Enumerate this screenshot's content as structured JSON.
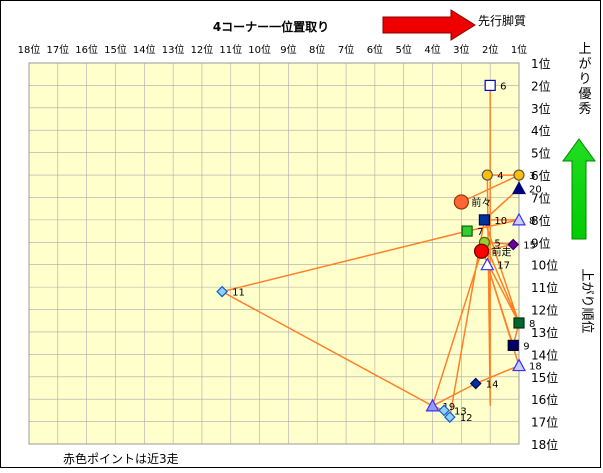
{
  "chart_data": {
    "type": "scatter",
    "title": "4コーナー一位置取り",
    "x_axis": {
      "label_direction": "先行脚質",
      "ticks": [
        "18位",
        "17位",
        "16位",
        "15位",
        "14位",
        "13位",
        "12位",
        "11位",
        "10位",
        "9位",
        "8位",
        "7位",
        "6位",
        "5位",
        "4位",
        "3位",
        "2位",
        "1位"
      ],
      "range": [
        18,
        1
      ],
      "reversed": true
    },
    "y_axis": {
      "label_top": "上がり優秀",
      "label_right": "上がり順位",
      "ticks": [
        "1位",
        "2位",
        "3位",
        "4位",
        "5位",
        "6位",
        "7位",
        "8位",
        "9位",
        "10位",
        "11位",
        "12位",
        "13位",
        "14位",
        "15位",
        "16位",
        "17位",
        "18位"
      ],
      "range": [
        1,
        18
      ]
    },
    "grid": true,
    "plot_background": "#ffffcc",
    "line_color": "#ff7f27",
    "note": "赤色ポイントは近3走",
    "points": [
      {
        "label": "6",
        "x": 2.0,
        "y": 2.0,
        "shape": "square",
        "fill": "#ffffff",
        "stroke": "#0000cc"
      },
      {
        "label": "4",
        "x": 2.1,
        "y": 6.0,
        "shape": "circle",
        "fill": "#ffc000",
        "stroke": "#555555"
      },
      {
        "label": "3",
        "x": 1.0,
        "y": 6.0,
        "shape": "circle",
        "fill": "#ffc000",
        "stroke": "#555555"
      },
      {
        "label": "20",
        "x": 1.0,
        "y": 6.6,
        "shape": "triangle",
        "fill": "#00007f",
        "stroke": "#00007f"
      },
      {
        "label": "前々",
        "x": 3.0,
        "y": 7.2,
        "shape": "circle",
        "fill": "#ff6633",
        "stroke": "#993300",
        "big": true
      },
      {
        "label": "10",
        "x": 2.2,
        "y": 8.0,
        "shape": "square",
        "fill": "#003399",
        "stroke": "#000066"
      },
      {
        "label": "8",
        "x": 1.0,
        "y": 8.0,
        "shape": "triangle",
        "fill": "#ccccff",
        "stroke": "#3333ff"
      },
      {
        "label": "7",
        "x": 2.8,
        "y": 8.5,
        "shape": "square",
        "fill": "#33cc33",
        "stroke": "#006600"
      },
      {
        "label": "5",
        "x": 2.2,
        "y": 9.0,
        "shape": "circle",
        "fill": "#99cc33",
        "stroke": "#556600"
      },
      {
        "label": "15",
        "x": 1.2,
        "y": 9.1,
        "shape": "diamond",
        "fill": "#660099",
        "stroke": "#330066"
      },
      {
        "label": "前走",
        "x": 2.3,
        "y": 9.4,
        "shape": "circle",
        "fill": "#ff0000",
        "stroke": "#660000",
        "big": true
      },
      {
        "label": "17",
        "x": 2.1,
        "y": 10.0,
        "shape": "triangle",
        "fill": "#ffffff",
        "stroke": "#3333ff"
      },
      {
        "label": "11",
        "x": 11.3,
        "y": 11.2,
        "shape": "diamond",
        "fill": "#99ccff",
        "stroke": "#0066cc"
      },
      {
        "label": "8",
        "x": 1.0,
        "y": 12.6,
        "shape": "square",
        "fill": "#006633",
        "stroke": "#003300"
      },
      {
        "label": "9",
        "x": 1.2,
        "y": 13.6,
        "shape": "square",
        "fill": "#000066",
        "stroke": "#000033"
      },
      {
        "label": "18",
        "x": 1.0,
        "y": 14.5,
        "shape": "triangle",
        "fill": "#ccccff",
        "stroke": "#3333ff"
      },
      {
        "label": "14",
        "x": 2.5,
        "y": 15.3,
        "shape": "diamond",
        "fill": "#003399",
        "stroke": "#000066"
      },
      {
        "label": "19",
        "x": 4.0,
        "y": 16.3,
        "shape": "triangle",
        "fill": "#9999ff",
        "stroke": "#3333ff"
      },
      {
        "label": "13",
        "x": 3.6,
        "y": 16.5,
        "shape": "diamond",
        "fill": "#99ccff",
        "stroke": "#0066cc"
      },
      {
        "label": "12",
        "x": 3.4,
        "y": 16.8,
        "shape": "diamond",
        "fill": "#99ccff",
        "stroke": "#0066cc"
      }
    ],
    "path_order": [
      "6",
      "4",
      "3",
      "20",
      "前々",
      "10",
      "8",
      "7",
      "5",
      "15",
      "前走",
      "17",
      "11",
      "8",
      "9",
      "18",
      "14",
      "19",
      "13",
      "12"
    ],
    "path_points": [
      [
        2.0,
        2.0
      ],
      [
        2.0,
        16.3
      ],
      [
        2.1,
        6.0
      ],
      [
        1.0,
        6.0
      ],
      [
        3.0,
        7.2
      ],
      [
        1.0,
        6.0
      ],
      [
        1.0,
        6.6
      ],
      [
        2.2,
        8.0
      ],
      [
        1.0,
        8.0
      ],
      [
        2.8,
        8.5
      ],
      [
        11.3,
        11.2
      ],
      [
        4.0,
        16.3
      ],
      [
        2.3,
        9.4
      ],
      [
        1.2,
        9.1
      ],
      [
        2.2,
        9.0
      ],
      [
        1.0,
        12.6
      ],
      [
        1.2,
        13.6
      ],
      [
        2.1,
        10.0
      ],
      [
        1.0,
        14.5
      ],
      [
        2.5,
        15.3
      ],
      [
        4.0,
        16.3
      ],
      [
        3.6,
        16.5
      ],
      [
        3.4,
        16.8
      ],
      [
        2.2,
        8.0
      ],
      [
        1.0,
        12.6
      ],
      [
        2.3,
        9.4
      ]
    ]
  }
}
